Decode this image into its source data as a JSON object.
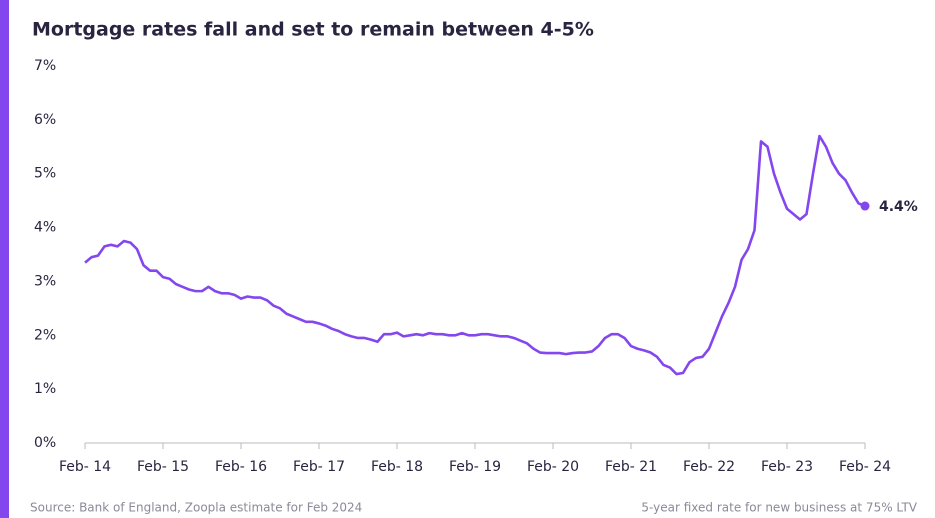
{
  "chart_data": {
    "type": "line",
    "title": "Mortgage rates fall and set to remain between 4-5%",
    "source": "Source: Bank of England, Zoopla estimate for Feb 2024",
    "note": "5-year fixed rate for new business at 75% LTV",
    "color": "#8447ee",
    "categories": [
      "Feb- 14",
      null,
      null,
      null,
      null,
      null,
      null,
      null,
      null,
      null,
      null,
      null,
      "Feb- 15",
      null,
      null,
      null,
      null,
      null,
      null,
      null,
      null,
      null,
      null,
      null,
      "Feb- 16",
      null,
      null,
      null,
      null,
      null,
      null,
      null,
      null,
      null,
      null,
      null,
      "Feb- 17",
      null,
      null,
      null,
      null,
      null,
      null,
      null,
      null,
      null,
      null,
      null,
      "Feb- 18",
      null,
      null,
      null,
      null,
      null,
      null,
      null,
      null,
      null,
      null,
      null,
      "Feb- 19",
      null,
      null,
      null,
      null,
      null,
      null,
      null,
      null,
      null,
      null,
      null,
      "Feb- 20",
      null,
      null,
      null,
      null,
      null,
      null,
      null,
      null,
      null,
      null,
      null,
      "Feb- 21",
      null,
      null,
      null,
      null,
      null,
      null,
      null,
      null,
      null,
      null,
      null,
      "Feb- 22",
      null,
      null,
      null,
      null,
      null,
      null,
      null,
      null,
      null,
      null,
      null,
      "Feb- 23",
      null,
      null,
      null,
      null,
      null,
      null,
      null,
      null,
      null,
      null,
      null,
      "Feb- 24"
    ],
    "values": [
      3.35,
      3.45,
      3.48,
      3.65,
      3.68,
      3.65,
      3.75,
      3.72,
      3.6,
      3.3,
      3.2,
      3.2,
      3.08,
      3.05,
      2.95,
      2.9,
      2.85,
      2.82,
      2.82,
      2.9,
      2.82,
      2.78,
      2.78,
      2.75,
      2.68,
      2.72,
      2.7,
      2.7,
      2.65,
      2.55,
      2.5,
      2.4,
      2.35,
      2.3,
      2.25,
      2.25,
      2.22,
      2.18,
      2.12,
      2.08,
      2.02,
      1.98,
      1.95,
      1.95,
      1.92,
      1.88,
      2.02,
      2.02,
      2.05,
      1.98,
      2.0,
      2.02,
      2.0,
      2.04,
      2.02,
      2.02,
      2.0,
      2.0,
      2.04,
      2.0,
      2.0,
      2.02,
      2.02,
      2.0,
      1.98,
      1.98,
      1.95,
      1.9,
      1.85,
      1.75,
      1.68,
      1.67,
      1.67,
      1.67,
      1.65,
      1.67,
      1.68,
      1.68,
      1.7,
      1.8,
      1.95,
      2.02,
      2.02,
      1.95,
      1.8,
      1.75,
      1.72,
      1.68,
      1.6,
      1.45,
      1.4,
      1.28,
      1.3,
      1.5,
      1.58,
      1.6,
      1.75,
      2.05,
      2.35,
      2.6,
      2.9,
      3.4,
      3.6,
      3.95,
      5.6,
      5.5,
      5.0,
      4.65,
      4.35,
      4.25,
      4.15,
      4.25,
      5.0,
      5.7,
      5.5,
      5.2,
      5.0,
      4.88,
      4.65,
      4.45,
      4.4
    ],
    "value_labels": [
      null,
      null,
      null,
      null,
      null,
      null,
      null,
      null,
      null,
      null,
      null,
      null,
      null,
      null,
      null,
      null,
      null,
      null,
      null,
      null,
      null,
      null,
      null,
      null,
      null,
      null,
      null,
      null,
      null,
      null,
      null,
      null,
      null,
      null,
      null,
      null,
      null,
      null,
      null,
      null,
      null,
      null,
      null,
      null,
      null,
      null,
      null,
      null,
      null,
      null,
      null,
      null,
      null,
      null,
      null,
      null,
      null,
      null,
      null,
      null,
      null,
      null,
      null,
      null,
      null,
      null,
      null,
      null,
      null,
      null,
      null,
      null,
      null,
      null,
      null,
      null,
      null,
      null,
      null,
      null,
      null,
      null,
      null,
      null,
      null,
      null,
      null,
      null,
      null,
      null,
      null,
      null,
      null,
      null,
      null,
      null,
      null,
      null,
      null,
      null,
      null,
      null,
      null,
      null,
      null,
      null,
      null,
      null,
      null,
      null,
      null,
      null,
      null,
      null,
      null,
      null,
      null,
      null,
      null,
      null,
      "4.4%"
    ],
    "ylim": [
      0,
      7
    ],
    "yticks": [
      {
        "value": 0,
        "label": "0%"
      },
      {
        "value": 1,
        "label": "1%"
      },
      {
        "value": 2,
        "label": "2%"
      },
      {
        "value": 3,
        "label": "3%"
      },
      {
        "value": 4,
        "label": "4%"
      },
      {
        "value": 5,
        "label": "5%"
      },
      {
        "value": 6,
        "label": "6%"
      },
      {
        "value": 7,
        "label": "7%"
      }
    ],
    "grid": false
  }
}
